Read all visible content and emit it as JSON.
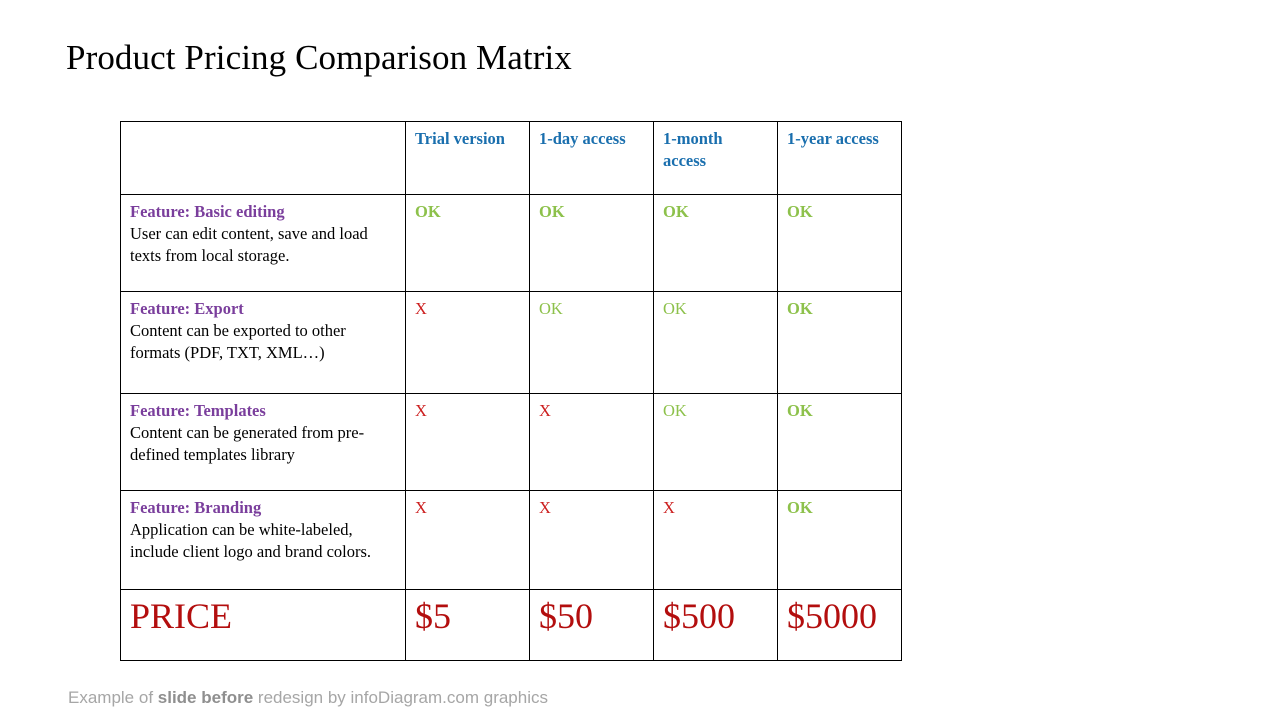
{
  "title": "Product Pricing Comparison Matrix",
  "columns": [
    "Trial version",
    "1-day access",
    "1-month access",
    "1-year access"
  ],
  "features": [
    {
      "title": "Feature: Basic editing",
      "desc": "User can edit content, save and load texts from local storage.",
      "values": [
        "OK",
        "OK",
        "OK",
        "OK"
      ]
    },
    {
      "title": "Feature: Export",
      "desc": "Content can be exported to other formats (PDF, TXT, XML…)",
      "values": [
        "X",
        "OK",
        "OK",
        "OK"
      ]
    },
    {
      "title": "Feature: Templates",
      "desc": "Content can be generated from pre-defined templates library",
      "values": [
        "X",
        "X",
        "OK",
        "OK"
      ]
    },
    {
      "title": "Feature: Branding",
      "desc": "Application can be white-labeled, include client logo and brand colors.",
      "values": [
        "X",
        "X",
        "X",
        "OK"
      ]
    }
  ],
  "price": {
    "label": "PRICE",
    "values": [
      "$5",
      "$50",
      "$500",
      "$5000"
    ]
  },
  "footer": {
    "prefix": "Example of ",
    "bold": "slide before",
    "suffix": " redesign by infoDiagram.com graphics"
  },
  "colors": {
    "column_header": "#1a6fae",
    "feature_title": "#7a3e9c",
    "ok": "#8dc14b",
    "x": "#cc1f1f",
    "price": "#b30e0e"
  }
}
